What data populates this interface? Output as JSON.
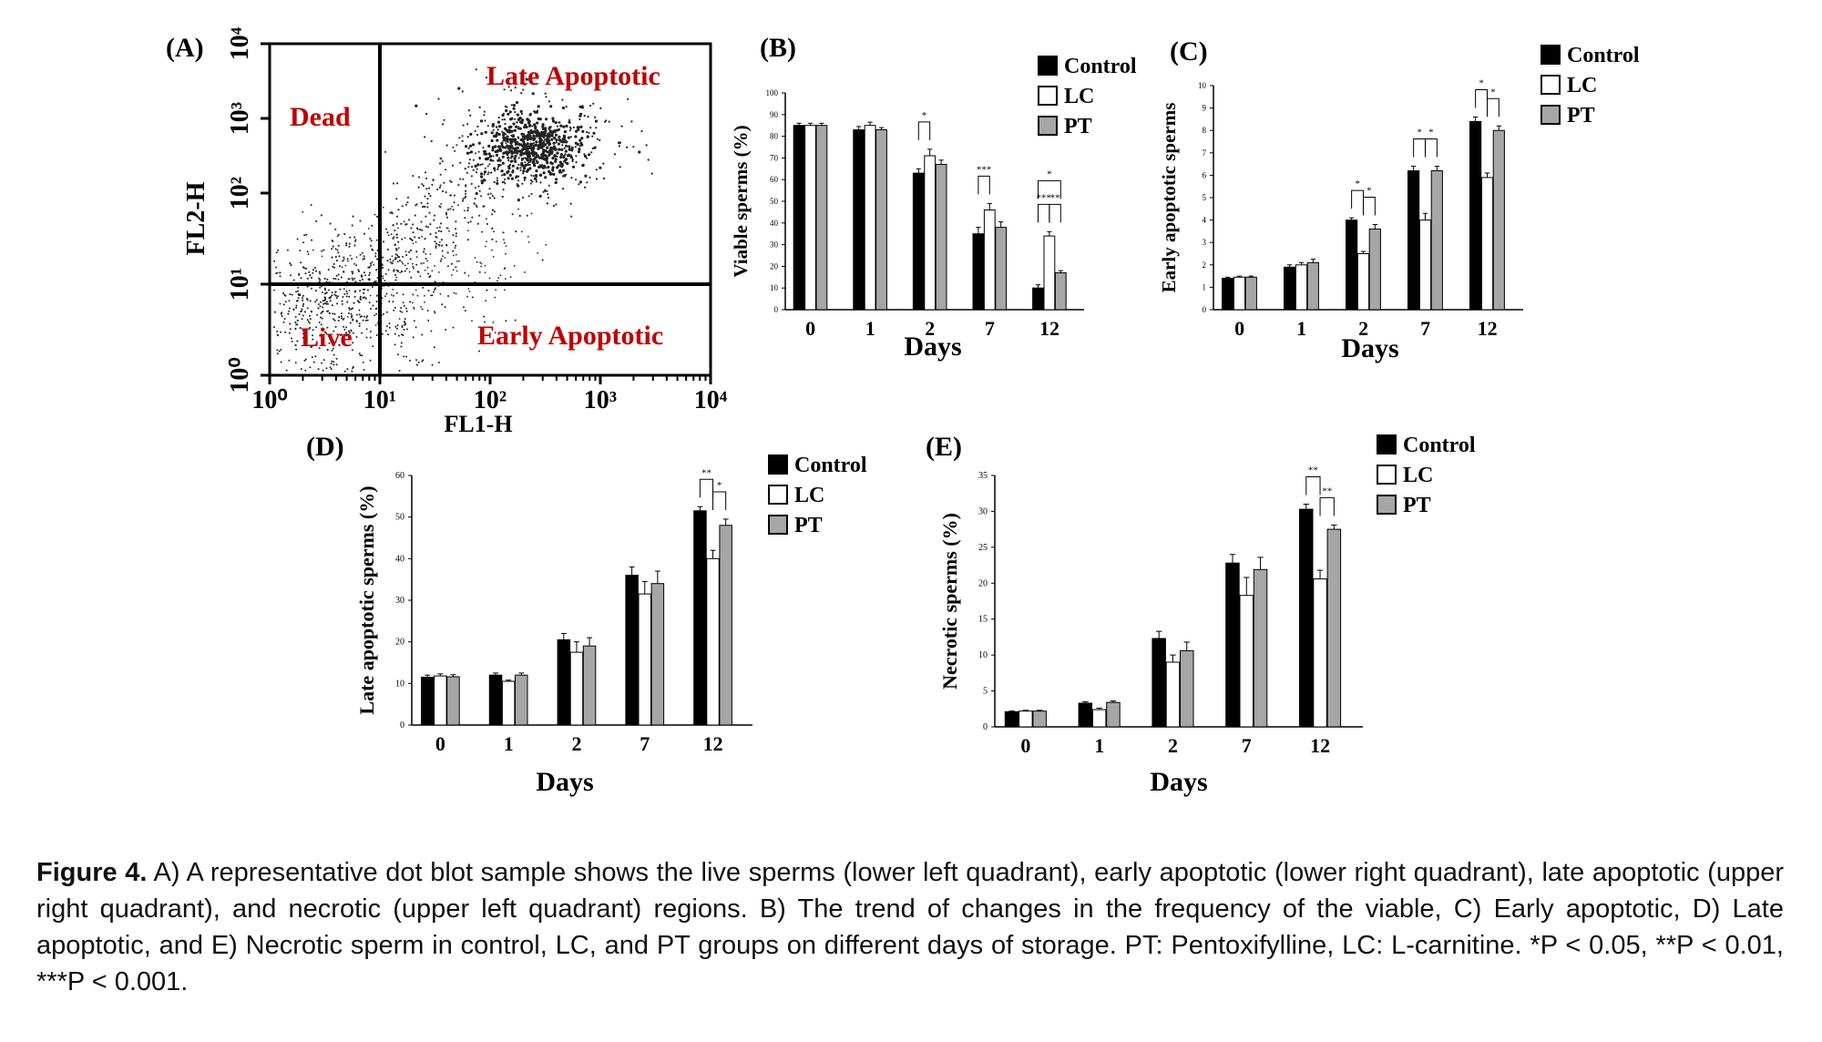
{
  "colors": {
    "control": "#000000",
    "lc": "#ffffff",
    "pt": "#a6a6a6",
    "quadrant_label": "#c00000",
    "axis": "#000000"
  },
  "panel_a": {
    "letter": "(A)",
    "xlabel": "FL1-H",
    "ylabel": "FL2-H",
    "xticks": [
      "10⁰",
      "10¹",
      "10²",
      "10³",
      "10⁴"
    ],
    "yticks": [
      "10⁰",
      "10¹",
      "10²",
      "10³",
      "10⁴"
    ],
    "quadrants": {
      "upper_left": "Dead",
      "upper_right": "Late Apoptotic",
      "lower_left": "Live",
      "lower_right": "Early Apoptotic"
    }
  },
  "chart_data": [
    {
      "id": "B",
      "letter": "(B)",
      "type": "bar",
      "categories": [
        "0",
        "1",
        "2",
        "7",
        "12"
      ],
      "xlabel": "Days",
      "ylabel": "Viable sperms (%)",
      "ylim": [
        0,
        100
      ],
      "yticks": [
        "0",
        "10",
        "20",
        "30",
        "40",
        "50",
        "60",
        "70",
        "80",
        "90",
        "100"
      ],
      "legend": "right",
      "series": [
        {
          "name": "Control",
          "values": [
            85,
            83,
            63,
            35,
            10
          ],
          "errors": [
            1,
            1.5,
            2,
            3,
            1.5
          ]
        },
        {
          "name": "LC",
          "values": [
            85,
            85,
            71,
            46,
            34
          ],
          "errors": [
            1,
            1.5,
            3,
            3,
            2
          ]
        },
        {
          "name": "PT",
          "values": [
            85,
            83,
            67,
            38,
            17
          ],
          "errors": [
            1,
            1,
            2,
            2.5,
            1
          ]
        }
      ],
      "significance": [
        {
          "cat": 2,
          "a": 0,
          "b": 1,
          "text": "*",
          "level": 0
        },
        {
          "cat": 3,
          "a": 0,
          "b": 1,
          "text": "***",
          "level": 0
        },
        {
          "cat": 4,
          "a": 0,
          "b": 1,
          "text": "***",
          "level": 0
        },
        {
          "cat": 4,
          "a": 1,
          "b": 2,
          "text": "**",
          "level": 0
        },
        {
          "cat": 4,
          "a": 0,
          "b": 2,
          "text": "*",
          "level": 1
        }
      ]
    },
    {
      "id": "C",
      "letter": "(C)",
      "type": "bar",
      "categories": [
        "0",
        "1",
        "2",
        "7",
        "12"
      ],
      "xlabel": "Days",
      "ylabel": "Early apoptotic sperms",
      "ylim": [
        0,
        10
      ],
      "yticks": [
        "0",
        "1",
        "2",
        "3",
        "4",
        "5",
        "6",
        "7",
        "8",
        "9",
        "10"
      ],
      "legend": "top-right",
      "series": [
        {
          "name": "Control",
          "values": [
            1.4,
            1.9,
            4.0,
            6.2,
            8.4
          ],
          "errors": [
            0.05,
            0.1,
            0.1,
            0.2,
            0.2
          ]
        },
        {
          "name": "LC",
          "values": [
            1.45,
            2.0,
            2.5,
            4.0,
            5.9
          ],
          "errors": [
            0.05,
            0.1,
            0.1,
            0.3,
            0.2
          ]
        },
        {
          "name": "PT",
          "values": [
            1.45,
            2.1,
            3.6,
            6.2,
            8.0
          ],
          "errors": [
            0.05,
            0.15,
            0.2,
            0.2,
            0.2
          ]
        }
      ],
      "significance": [
        {
          "cat": 2,
          "a": 0,
          "b": 1,
          "text": "*",
          "level": 0
        },
        {
          "cat": 2,
          "a": 1,
          "b": 2,
          "text": "*",
          "level": 0
        },
        {
          "cat": 3,
          "a": 0,
          "b": 1,
          "text": "*",
          "level": 0
        },
        {
          "cat": 3,
          "a": 1,
          "b": 2,
          "text": "*",
          "level": 0
        },
        {
          "cat": 4,
          "a": 0,
          "b": 1,
          "text": "*",
          "level": 0
        },
        {
          "cat": 4,
          "a": 1,
          "b": 2,
          "text": "*",
          "level": 0
        }
      ]
    },
    {
      "id": "D",
      "letter": "(D)",
      "type": "bar",
      "categories": [
        "0",
        "1",
        "2",
        "7",
        "12"
      ],
      "xlabel": "Days",
      "ylabel": "Late apoptotic sperms (%)",
      "ylim": [
        0,
        60
      ],
      "yticks": [
        "0",
        "10",
        "20",
        "30",
        "40",
        "50",
        "60"
      ],
      "legend": "top-right",
      "series": [
        {
          "name": "Control",
          "values": [
            11.5,
            12,
            20.5,
            36,
            51.5
          ],
          "errors": [
            0.5,
            0.5,
            1.5,
            2,
            1
          ]
        },
        {
          "name": "LC",
          "values": [
            11.8,
            10.5,
            17.5,
            31.5,
            40
          ],
          "errors": [
            0.5,
            0.3,
            2.5,
            3,
            2
          ]
        },
        {
          "name": "PT",
          "values": [
            11.6,
            12,
            19,
            34,
            48
          ],
          "errors": [
            0.5,
            0.5,
            2,
            3,
            1.5
          ]
        }
      ],
      "significance": [
        {
          "cat": 4,
          "a": 0,
          "b": 1,
          "text": "**",
          "level": 0
        },
        {
          "cat": 4,
          "a": 1,
          "b": 2,
          "text": "*",
          "level": 0
        }
      ]
    },
    {
      "id": "E",
      "letter": "(E)",
      "type": "bar",
      "categories": [
        "0",
        "1",
        "2",
        "7",
        "12"
      ],
      "xlabel": "Days",
      "ylabel": "Necrotic sperms (%)",
      "ylim": [
        0,
        35
      ],
      "yticks": [
        "0",
        "5",
        "10",
        "15",
        "20",
        "25",
        "30",
        "35"
      ],
      "legend": "top-right",
      "series": [
        {
          "name": "Control",
          "values": [
            2.1,
            3.3,
            12.3,
            22.8,
            30.3
          ],
          "errors": [
            0.1,
            0.2,
            1,
            1.2,
            0.7
          ]
        },
        {
          "name": "LC",
          "values": [
            2.2,
            2.4,
            9,
            18.3,
            20.6
          ],
          "errors": [
            0.1,
            0.2,
            1,
            2.5,
            1.2
          ]
        },
        {
          "name": "PT",
          "values": [
            2.2,
            3.4,
            10.6,
            21.9,
            27.5
          ],
          "errors": [
            0.1,
            0.2,
            1.2,
            1.7,
            0.6
          ]
        }
      ],
      "significance": [
        {
          "cat": 4,
          "a": 0,
          "b": 1,
          "text": "**",
          "level": 0
        },
        {
          "cat": 4,
          "a": 1,
          "b": 2,
          "text": "**",
          "level": 0
        }
      ]
    }
  ],
  "caption": {
    "label": "Figure 4.",
    "text": "A) A representative dot blot sample shows the live sperms (lower left quadrant), early apoptotic (lower right quadrant), late apoptotic (upper right quadrant), and necrotic (upper left quadrant) regions. B) The trend of changes in the frequency of the viable, C) Early apoptotic, D) Late apoptotic, and E) Necrotic sperm in control, LC, and PT groups on different days of storage. PT: Pentoxifylline, LC: L-carnitine. *P < 0.05, **P < 0.01, ***P < 0.001."
  }
}
